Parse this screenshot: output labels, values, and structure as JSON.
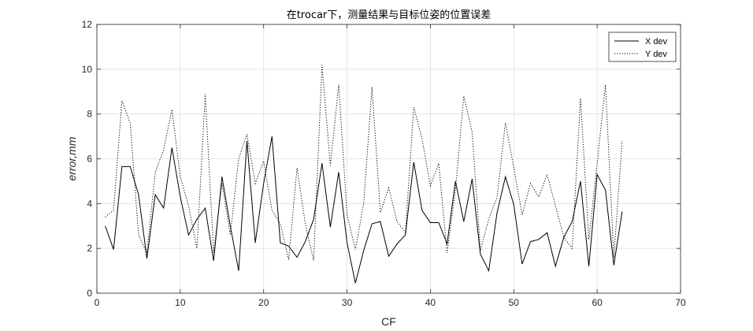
{
  "chart_data": {
    "type": "line",
    "title": "在trocar下，测量结果与目标位姿的位置误差",
    "xlabel": "CF",
    "ylabel": "error,mm",
    "xlim": [
      0,
      70
    ],
    "ylim": [
      0,
      12
    ],
    "xticks": [
      0,
      10,
      20,
      30,
      40,
      50,
      60,
      70
    ],
    "yticks": [
      0,
      2,
      4,
      6,
      8,
      10,
      12
    ],
    "grid": true,
    "legend_position": "top-right",
    "x": [
      1,
      2,
      3,
      4,
      5,
      6,
      7,
      8,
      9,
      10,
      11,
      12,
      13,
      14,
      15,
      16,
      17,
      18,
      19,
      20,
      21,
      22,
      23,
      24,
      25,
      26,
      27,
      28,
      29,
      30,
      31,
      32,
      33,
      34,
      35,
      36,
      37,
      38,
      39,
      40,
      41,
      42,
      43,
      44,
      45,
      46,
      47,
      48,
      49,
      50,
      51,
      52,
      53,
      54,
      55,
      56,
      57,
      58,
      59,
      60,
      61,
      62,
      63
    ],
    "series": [
      {
        "name": "X dev",
        "style": "solid",
        "color": "#000000",
        "values": [
          3.0,
          1.95,
          5.65,
          5.65,
          4.4,
          1.55,
          4.4,
          3.8,
          6.5,
          4.3,
          2.6,
          3.3,
          3.8,
          1.45,
          5.2,
          3.0,
          1.0,
          6.8,
          2.25,
          4.9,
          7.0,
          2.25,
          2.1,
          1.6,
          2.3,
          3.3,
          5.8,
          2.95,
          5.4,
          2.25,
          0.45,
          1.9,
          3.1,
          3.2,
          1.65,
          2.2,
          2.6,
          5.85,
          3.7,
          3.15,
          3.15,
          2.2,
          5.0,
          3.2,
          5.1,
          1.75,
          1.0,
          3.6,
          5.2,
          3.95,
          1.3,
          2.3,
          2.4,
          2.7,
          1.2,
          2.5,
          3.2,
          5.0,
          1.2,
          5.3,
          4.6,
          1.25,
          3.65
        ]
      },
      {
        "name": "Y dev",
        "style": "dotted",
        "color": "#000000",
        "values": [
          3.4,
          3.7,
          8.6,
          7.6,
          2.6,
          1.8,
          5.4,
          6.4,
          8.2,
          5.2,
          3.9,
          2.0,
          8.9,
          1.8,
          4.9,
          2.6,
          6.0,
          7.1,
          4.9,
          5.9,
          3.7,
          3.1,
          1.5,
          5.6,
          3.1,
          1.45,
          10.2,
          5.7,
          9.3,
          3.5,
          1.95,
          4.0,
          9.2,
          3.6,
          4.7,
          3.2,
          2.7,
          8.3,
          6.9,
          4.8,
          5.8,
          1.8,
          4.6,
          8.8,
          7.2,
          1.9,
          3.3,
          4.3,
          7.6,
          5.6,
          3.5,
          4.9,
          4.3,
          5.3,
          3.9,
          2.5,
          2.0,
          8.7,
          2.4,
          5.8,
          9.3,
          1.6,
          6.8
        ]
      }
    ]
  }
}
